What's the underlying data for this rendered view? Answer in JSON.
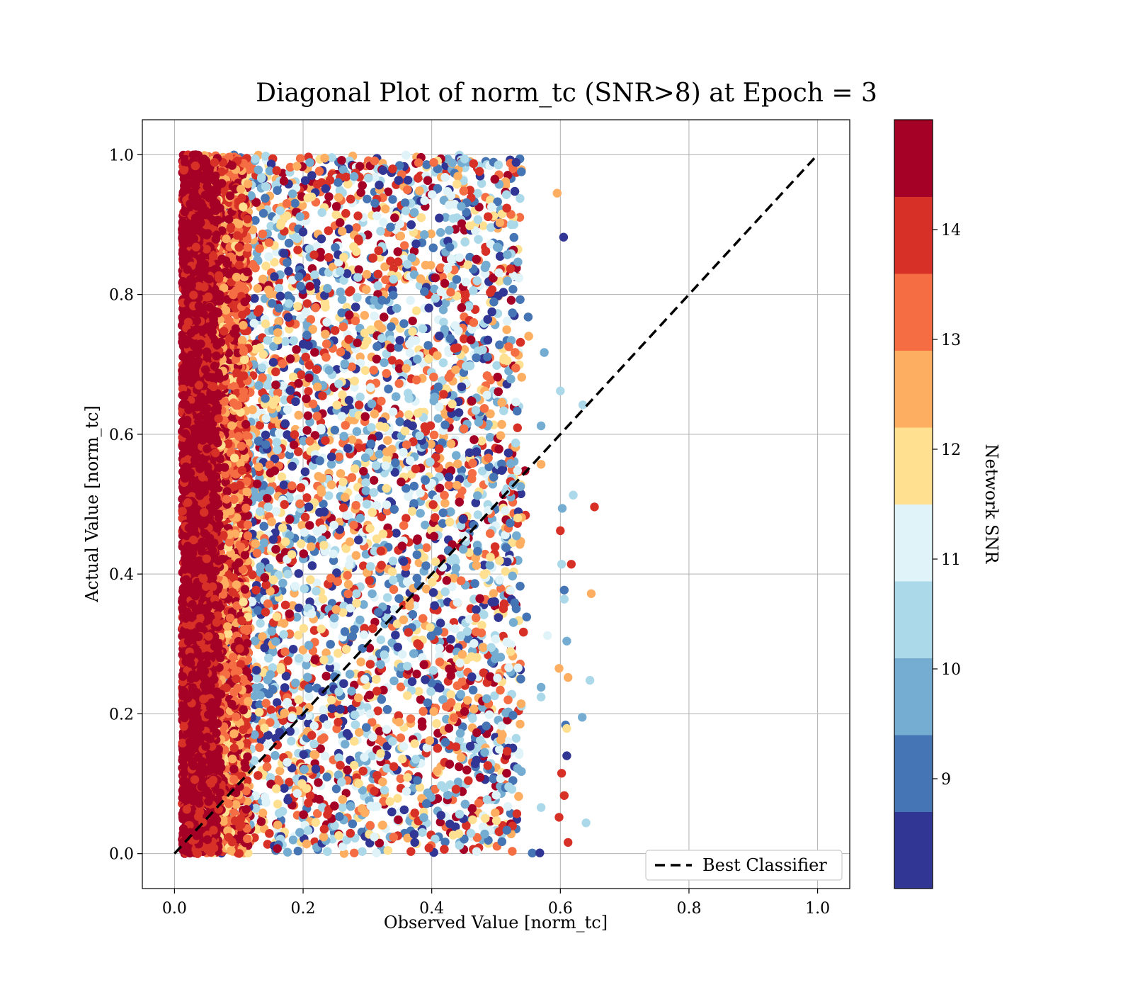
{
  "chart_data": {
    "type": "scatter",
    "title": "Diagonal Plot of norm_tc (SNR>8) at Epoch = 3",
    "xlabel": "Observed Value [norm_tc]",
    "ylabel": "Actual Value [norm_tc]",
    "xlim": [
      -0.05,
      1.05
    ],
    "ylim": [
      -0.05,
      1.05
    ],
    "x_ticks": [
      "0.0",
      "0.2",
      "0.4",
      "0.6",
      "0.8",
      "1.0"
    ],
    "y_ticks": [
      "0.0",
      "0.2",
      "0.4",
      "0.6",
      "0.8",
      "1.0"
    ],
    "grid": true,
    "legend": {
      "location": "lower-right",
      "entries": [
        "Best Classifier"
      ]
    },
    "reference_line": {
      "name": "Best Classifier",
      "style": "dashed",
      "color": "#000000",
      "x": [
        0,
        1
      ],
      "y": [
        0,
        1
      ]
    },
    "colorbar": {
      "label": "Network SNR",
      "range": [
        8,
        15
      ],
      "ticks": [
        "9",
        "10",
        "11",
        "12",
        "13",
        "14"
      ],
      "colors": [
        "#313695",
        "#4575b4",
        "#74add1",
        "#abd9e9",
        "#e0f3f8",
        "#fee090",
        "#fdae61",
        "#f46d43",
        "#d73027",
        "#a50026"
      ]
    },
    "scatter_description": {
      "x_range_bulk": [
        0.01,
        0.56
      ],
      "y_range": [
        0.0,
        1.0
      ],
      "pattern": "high-SNR points concentrate at small observed values (0.01-0.07); lower SNR points spread across 0.07-0.56"
    },
    "outliers": [
      {
        "x": 0.595,
        "y": 0.945,
        "snr": 12.5
      },
      {
        "x": 0.605,
        "y": 0.882,
        "snr": 8.3
      },
      {
        "x": 0.575,
        "y": 0.717,
        "snr": 9.8
      },
      {
        "x": 0.6,
        "y": 0.662,
        "snr": 10.3
      },
      {
        "x": 0.635,
        "y": 0.642,
        "snr": 10.5
      },
      {
        "x": 0.57,
        "y": 0.612,
        "snr": 9.6
      },
      {
        "x": 0.57,
        "y": 0.557,
        "snr": 12.8
      },
      {
        "x": 0.62,
        "y": 0.513,
        "snr": 10.4
      },
      {
        "x": 0.653,
        "y": 0.496,
        "snr": 14.2
      },
      {
        "x": 0.603,
        "y": 0.494,
        "snr": 9.7
      },
      {
        "x": 0.6,
        "y": 0.462,
        "snr": 14.0
      },
      {
        "x": 0.617,
        "y": 0.414,
        "snr": 14.1
      },
      {
        "x": 0.602,
        "y": 0.414,
        "snr": 10.6
      },
      {
        "x": 0.606,
        "y": 0.377,
        "snr": 9.2
      },
      {
        "x": 0.606,
        "y": 0.364,
        "snr": 10.3
      },
      {
        "x": 0.648,
        "y": 0.372,
        "snr": 12.5
      },
      {
        "x": 0.58,
        "y": 0.312,
        "snr": 11.3
      },
      {
        "x": 0.61,
        "y": 0.304,
        "snr": 9.8
      },
      {
        "x": 0.598,
        "y": 0.265,
        "snr": 12.6
      },
      {
        "x": 0.612,
        "y": 0.252,
        "snr": 12.4
      },
      {
        "x": 0.646,
        "y": 0.248,
        "snr": 10.2
      },
      {
        "x": 0.57,
        "y": 0.238,
        "snr": 9.7
      },
      {
        "x": 0.57,
        "y": 0.224,
        "snr": 10.4
      },
      {
        "x": 0.634,
        "y": 0.195,
        "snr": 9.6
      },
      {
        "x": 0.608,
        "y": 0.184,
        "snr": 9.3
      },
      {
        "x": 0.61,
        "y": 0.179,
        "snr": 11.8
      },
      {
        "x": 0.61,
        "y": 0.14,
        "snr": 8.3
      },
      {
        "x": 0.602,
        "y": 0.115,
        "snr": 14.0
      },
      {
        "x": 0.606,
        "y": 0.083,
        "snr": 14.1
      },
      {
        "x": 0.57,
        "y": 0.066,
        "snr": 10.5
      },
      {
        "x": 0.598,
        "y": 0.052,
        "snr": 14.0
      },
      {
        "x": 0.64,
        "y": 0.044,
        "snr": 10.3
      },
      {
        "x": 0.612,
        "y": 0.016,
        "snr": 14.1
      },
      {
        "x": 0.568,
        "y": 0.001,
        "snr": 8.4
      }
    ]
  }
}
